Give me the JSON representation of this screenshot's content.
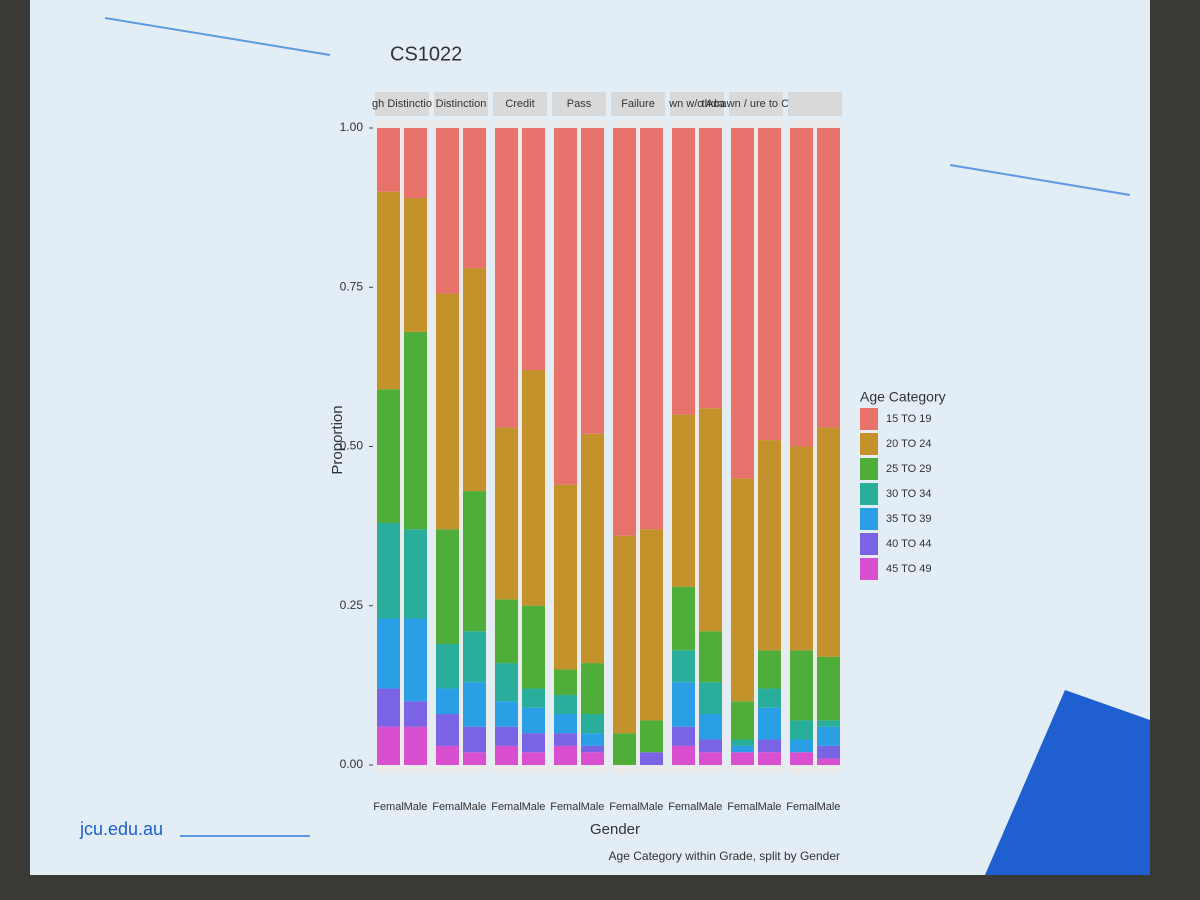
{
  "chart_data": {
    "type": "bar",
    "stacked": true,
    "title": "CS1022",
    "y_label": "Proportion",
    "x_label": "Gender",
    "legend_title": "Age Category",
    "caption": "Age Category within Grade, split by Gender",
    "footer": "jcu.edu.au",
    "facets": [
      "gh Distinctio",
      "Distinction",
      "Credit",
      "Pass",
      "Failure",
      "wn w/o Aca",
      "thdrawn / ure to Comp",
      null
    ],
    "categories": [
      "Femal",
      "Male"
    ],
    "ylim": [
      0,
      1
    ],
    "yticks": [
      {
        "value": 0,
        "label": "0.00"
      },
      {
        "value": 0.25,
        "label": "0.25"
      },
      {
        "value": 0.5,
        "label": "0.50"
      },
      {
        "value": 0.75,
        "label": "0.75"
      },
      {
        "value": 1,
        "label": "1.00"
      }
    ],
    "series": [
      {
        "name": "15 TO 19",
        "color": "#e8736c",
        "values": [
          [
            0.1,
            0.11
          ],
          [
            0.26,
            0.22
          ],
          [
            0.47,
            0.38
          ],
          [
            0.56,
            0.48
          ],
          [
            0.64,
            0.63
          ],
          [
            0.45,
            0.44
          ],
          [
            0.55,
            0.49
          ],
          [
            0.5,
            0.47
          ]
        ]
      },
      {
        "name": "20 TO 24",
        "color": "#c4922a",
        "values": [
          [
            0.31,
            0.21
          ],
          [
            0.37,
            0.35
          ],
          [
            0.27,
            0.37
          ],
          [
            0.29,
            0.36
          ],
          [
            0.31,
            0.3
          ],
          [
            0.27,
            0.35
          ],
          [
            0.35,
            0.33
          ],
          [
            0.32,
            0.36
          ]
        ]
      },
      {
        "name": "25 TO 29",
        "color": "#4fad3a",
        "values": [
          [
            0.21,
            0.31
          ],
          [
            0.18,
            0.22
          ],
          [
            0.1,
            0.13
          ],
          [
            0.04,
            0.08
          ],
          [
            0.05,
            0.05
          ],
          [
            0.1,
            0.08
          ],
          [
            0.06,
            0.06
          ],
          [
            0.11,
            0.1
          ]
        ]
      },
      {
        "name": "30 TO 34",
        "color": "#2aae9c",
        "values": [
          [
            0.15,
            0.14
          ],
          [
            0.07,
            0.08
          ],
          [
            0.06,
            0.03
          ],
          [
            0.03,
            0.03
          ],
          [
            0,
            0
          ],
          [
            0.05,
            0.05
          ],
          [
            0.01,
            0.03
          ],
          [
            0.03,
            0.01
          ]
        ]
      },
      {
        "name": "35 TO 39",
        "color": "#2a9fe6",
        "values": [
          [
            0.11,
            0.13
          ],
          [
            0.04,
            0.07
          ],
          [
            0.04,
            0.04
          ],
          [
            0.03,
            0.02
          ],
          [
            0,
            0
          ],
          [
            0.07,
            0.04
          ],
          [
            0.01,
            0.05
          ],
          [
            0.02,
            0.03
          ]
        ]
      },
      {
        "name": "40 TO 44",
        "color": "#7b63e6",
        "values": [
          [
            0.06,
            0.04
          ],
          [
            0.05,
            0.04
          ],
          [
            0.03,
            0.03
          ],
          [
            0.02,
            0.01
          ],
          [
            0,
            0.02
          ],
          [
            0.03,
            0.02
          ],
          [
            0,
            0.02
          ],
          [
            0,
            0.02
          ]
        ]
      },
      {
        "name": "45 TO 49",
        "color": "#d84fcf",
        "values": [
          [
            0.06,
            0.06
          ],
          [
            0.03,
            0.02
          ],
          [
            0.03,
            0.02
          ],
          [
            0.03,
            0.02
          ],
          [
            0,
            0
          ],
          [
            0.03,
            0.02
          ],
          [
            0.02,
            0.02
          ],
          [
            0.02,
            0.01
          ]
        ]
      }
    ]
  }
}
